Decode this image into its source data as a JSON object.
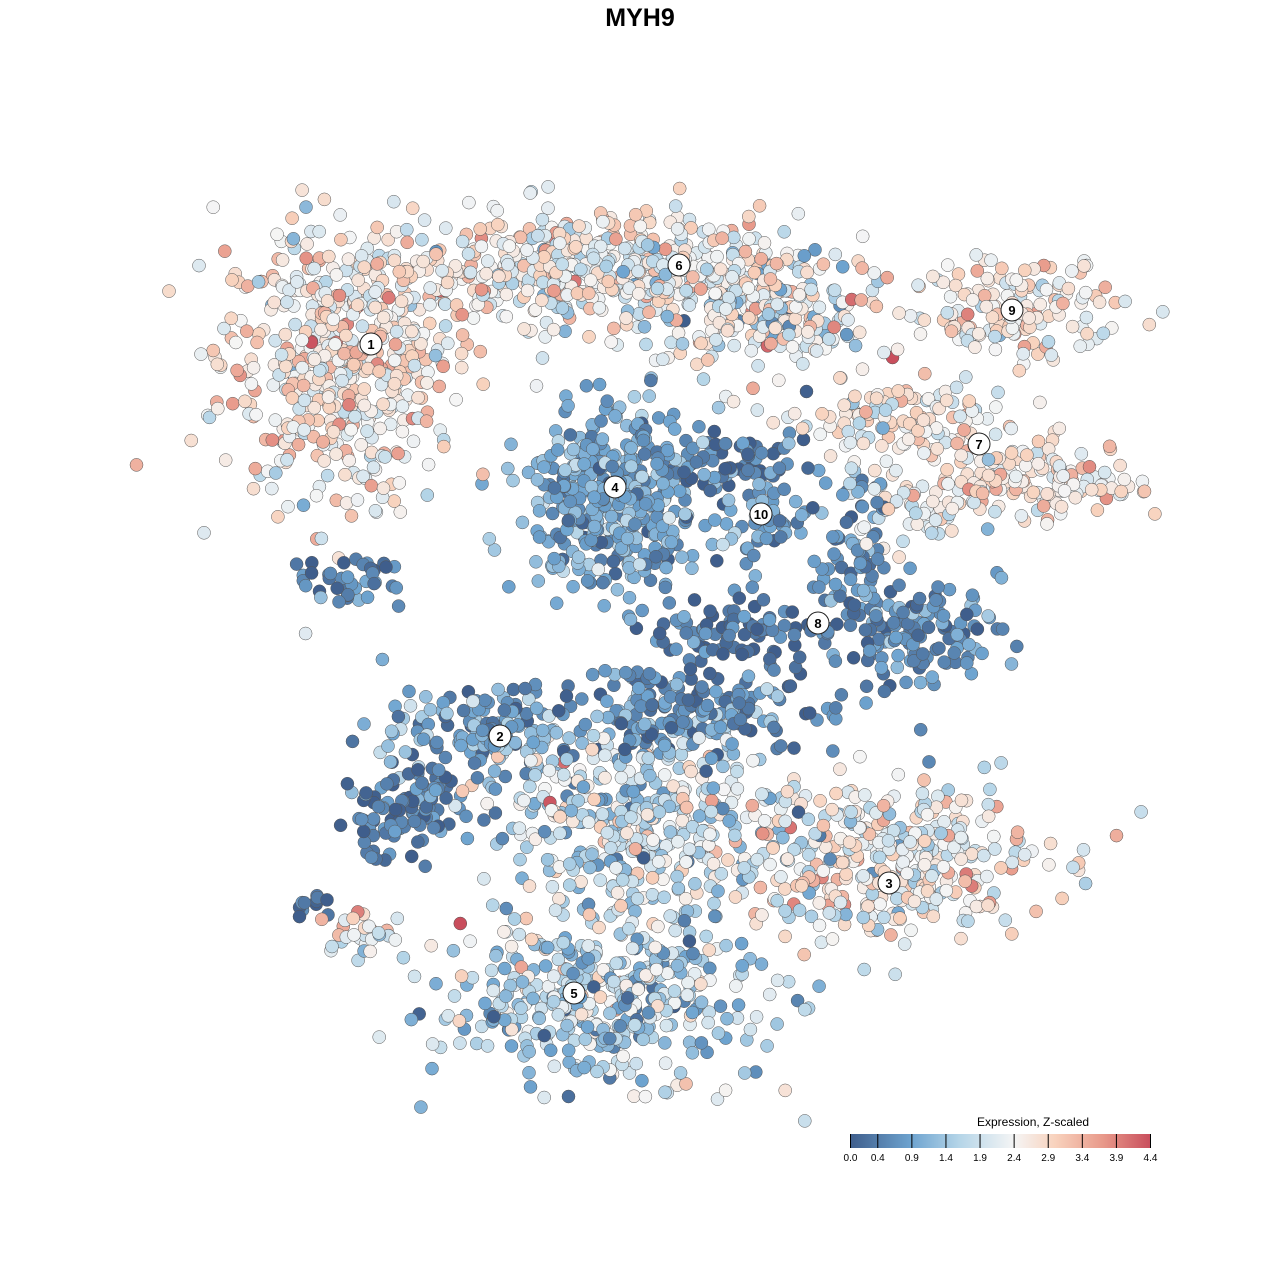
{
  "chart_data": {
    "type": "scatter",
    "title": "MYH9",
    "xlabel": "",
    "ylabel": "",
    "xlim": [
      -45,
      50
    ],
    "ylim": [
      -50,
      48
    ],
    "grid": false,
    "legend": {
      "title": "Expression, Z-scaled",
      "placement": "bottom-right",
      "ticks": [
        "0.0",
        "0.4",
        "0.9",
        "1.4",
        "1.9",
        "2.4",
        "2.9",
        "3.4",
        "3.9",
        "4.4"
      ],
      "range": [
        0,
        4.4
      ],
      "colors": [
        {
          "v": 0.0,
          "c": "#3f5e8c"
        },
        {
          "v": 0.9,
          "c": "#6ea4d0"
        },
        {
          "v": 1.6,
          "c": "#b5d5e8"
        },
        {
          "v": 2.4,
          "c": "#f5f5f5"
        },
        {
          "v": 3.0,
          "c": "#f8d2bd"
        },
        {
          "v": 3.7,
          "c": "#e8998a"
        },
        {
          "v": 4.4,
          "c": "#c84d5c"
        }
      ]
    },
    "cluster_labels": [
      {
        "label": "1",
        "x": -26.9,
        "y": 29.6
      },
      {
        "label": "2",
        "x": -14.0,
        "y": -9.6
      },
      {
        "label": "3",
        "x": 24.9,
        "y": -24.3
      },
      {
        "label": "4",
        "x": -2.5,
        "y": 15.3
      },
      {
        "label": "5",
        "x": -6.6,
        "y": -35.3
      },
      {
        "label": "6",
        "x": 3.9,
        "y": 37.5
      },
      {
        "label": "7",
        "x": 33.9,
        "y": 19.6
      },
      {
        "label": "8",
        "x": 17.8,
        "y": 1.7
      },
      {
        "label": "9",
        "x": 37.2,
        "y": 33.0
      },
      {
        "label": "10",
        "x": 12.1,
        "y": 12.6
      }
    ],
    "point_groups": [
      {
        "cluster": "1",
        "cx": -30,
        "cy": 28,
        "sx": 7.5,
        "sy": 8.5,
        "n": 520,
        "mean": 2.6,
        "sd": 0.55
      },
      {
        "cluster": "1",
        "cx": -29,
        "cy": 6,
        "sx": 3,
        "sy": 1.5,
        "n": 40,
        "mean": 0.4,
        "sd": 0.4
      },
      {
        "cluster": "6",
        "cx": -5,
        "cy": 37,
        "sx": 13,
        "sy": 3.5,
        "n": 520,
        "mean": 2.4,
        "sd": 0.6
      },
      {
        "cluster": "6",
        "cx": 12,
        "cy": 33,
        "sx": 7,
        "sy": 4,
        "n": 200,
        "mean": 2.2,
        "sd": 0.7
      },
      {
        "cluster": "9",
        "cx": 37,
        "cy": 33,
        "sx": 7,
        "sy": 3,
        "n": 150,
        "mean": 2.6,
        "sd": 0.5
      },
      {
        "cluster": "7",
        "cx": 26,
        "cy": 22,
        "sx": 7,
        "sy": 3,
        "n": 130,
        "mean": 2.4,
        "sd": 0.6
      },
      {
        "cluster": "7",
        "cx": 40,
        "cy": 16,
        "sx": 6,
        "sy": 2.5,
        "n": 140,
        "mean": 2.7,
        "sd": 0.5
      },
      {
        "cluster": "7",
        "cx": 27,
        "cy": 13,
        "sx": 4,
        "sy": 2,
        "n": 50,
        "mean": 2.3,
        "sd": 0.5
      },
      {
        "cluster": "4",
        "cx": -2.5,
        "cy": 14,
        "sx": 5.5,
        "sy": 5.5,
        "n": 420,
        "mean": 0.9,
        "sd": 0.45
      },
      {
        "cluster": "4",
        "cx": 9,
        "cy": 18,
        "sx": 5,
        "sy": 2,
        "n": 70,
        "mean": 0.4,
        "sd": 0.4
      },
      {
        "cluster": "10",
        "cx": 12,
        "cy": 12,
        "sx": 2.3,
        "sy": 3,
        "n": 50,
        "mean": 0.8,
        "sd": 0.4
      },
      {
        "cluster": "8",
        "cx": 21,
        "cy": 8,
        "sx": 2.5,
        "sy": 5,
        "n": 70,
        "mean": 0.6,
        "sd": 0.4
      },
      {
        "cluster": "8",
        "cx": 28,
        "cy": 1,
        "sx": 5,
        "sy": 3,
        "n": 130,
        "mean": 0.6,
        "sd": 0.4
      },
      {
        "cluster": "8",
        "cx": 10,
        "cy": 1,
        "sx": 6,
        "sy": 2,
        "n": 90,
        "mean": 0.3,
        "sd": 0.35
      },
      {
        "cluster": "2",
        "cx": -16,
        "cy": -9,
        "sx": 6,
        "sy": 2.5,
        "n": 110,
        "mean": 0.9,
        "sd": 0.5
      },
      {
        "cluster": "2",
        "cx": -24,
        "cy": -17,
        "sx": 4,
        "sy": 3,
        "n": 110,
        "mean": 0.4,
        "sd": 0.4
      },
      {
        "cluster": "3",
        "cx": 4,
        "cy": -7,
        "sx": 11,
        "sy": 3,
        "n": 200,
        "mean": 0.6,
        "sd": 0.5
      },
      {
        "cluster": "3",
        "cx": 0,
        "cy": -18,
        "sx": 10,
        "sy": 6,
        "n": 420,
        "mean": 1.8,
        "sd": 0.7
      },
      {
        "cluster": "3",
        "cx": 25,
        "cy": -22,
        "sx": 9.5,
        "sy": 5,
        "n": 360,
        "mean": 2.4,
        "sd": 0.6
      },
      {
        "cluster": "5",
        "cx": -4,
        "cy": -36,
        "sx": 10,
        "sy": 5,
        "n": 420,
        "mean": 1.6,
        "sd": 0.7
      },
      {
        "cluster": "5",
        "cx": -28,
        "cy": -29.5,
        "sx": 3,
        "sy": 1.5,
        "n": 30,
        "mean": 2.5,
        "sd": 0.6
      },
      {
        "cluster": "5",
        "cx": -33,
        "cy": -26.5,
        "sx": 1.5,
        "sy": 1,
        "n": 12,
        "mean": 0.3,
        "sd": 0.3
      }
    ]
  }
}
